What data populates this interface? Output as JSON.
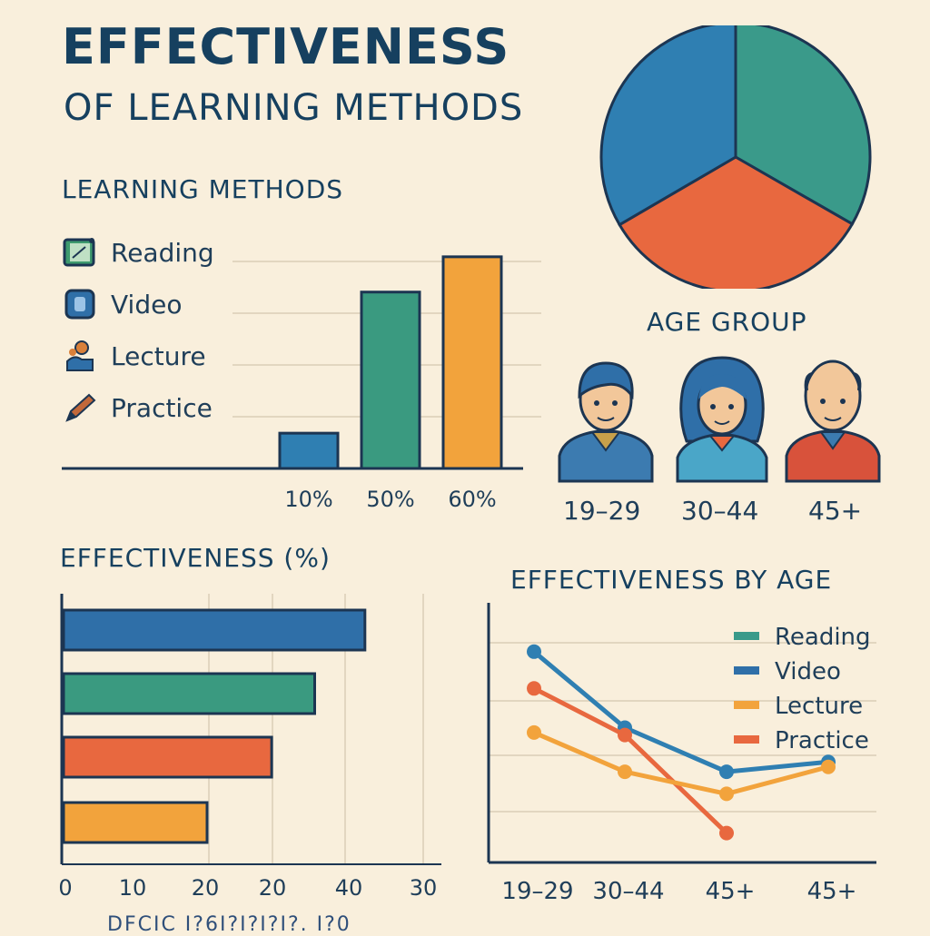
{
  "header": {
    "title_line1": "EFFECTIVENESS",
    "title_line2": "OF LEARNING METHODS"
  },
  "methods_section": {
    "heading": "LEARNING METHODS",
    "items": [
      {
        "label": "Reading",
        "icon": "book-icon",
        "color": "#3e9a6e"
      },
      {
        "label": "Video",
        "icon": "video-icon",
        "color": "#2f6fa8"
      },
      {
        "label": "Lecture",
        "icon": "lecturer-icon",
        "color": "#d9803a"
      },
      {
        "label": "Practice",
        "icon": "pencil-icon",
        "color": "#c2683a"
      }
    ]
  },
  "age_section": {
    "heading": "AGE GROUP",
    "groups": [
      {
        "label": "19–29",
        "icon": "young-man-avatar-icon",
        "shirt": "#3c7bb0"
      },
      {
        "label": "30–44",
        "icon": "woman-avatar-icon",
        "shirt": "#4aa6c8"
      },
      {
        "label": "45+",
        "icon": "older-man-avatar-icon",
        "shirt": "#d8523b"
      }
    ]
  },
  "colors": {
    "reading": "#3a9a8a",
    "video": "#2f6fa8",
    "lecture": "#f2a33c",
    "practice": "#e8683f",
    "dark_outline": "#1c3552",
    "background": "#f9efdc"
  },
  "chart_data": [
    {
      "id": "methods-bar",
      "type": "bar",
      "categories": [
        "10%",
        "50%",
        "60%"
      ],
      "values": [
        10,
        50,
        60
      ],
      "colors": [
        "#2f7fb2",
        "#3a9a80",
        "#f2a33c"
      ],
      "ylim": [
        0,
        70
      ],
      "grid": true
    },
    {
      "id": "age-pie",
      "type": "pie",
      "values": [
        33.3,
        33.3,
        33.4
      ],
      "colors": [
        "#3a9a8a",
        "#e8683f",
        "#2f7fb2"
      ]
    },
    {
      "id": "effectiveness-hbar",
      "type": "bar",
      "orientation": "horizontal",
      "title": "EFFECTIVENESS (%)",
      "values": [
        42,
        35,
        29,
        20
      ],
      "colors": [
        "#2f6fa8",
        "#3a9a80",
        "#e8683f",
        "#f2a33c"
      ],
      "xticks": [
        "0",
        "10",
        "20",
        "20",
        "40",
        "30"
      ],
      "xlim": [
        0,
        50
      ],
      "grid": true
    },
    {
      "id": "effectiveness-by-age",
      "type": "line",
      "title": "EFFECTIVENESS BY AGE",
      "categories": [
        "19–29",
        "30–44",
        "45+",
        "45+"
      ],
      "ylim": [
        0,
        100
      ],
      "grid": true,
      "legend": "top-right",
      "legend_entries": [
        {
          "name": "Reading",
          "color": "#3a9a8a"
        },
        {
          "name": "Video",
          "color": "#2f6fa8"
        },
        {
          "name": "Lecture",
          "color": "#f2a33c"
        },
        {
          "name": "Practice",
          "color": "#e8683f"
        }
      ],
      "series": [
        {
          "name": "Video",
          "color": "#2f7fb2",
          "values": [
            86,
            55,
            37,
            41
          ]
        },
        {
          "name": "Practice",
          "color": "#e8683f",
          "values": [
            71,
            52,
            12,
            null
          ]
        },
        {
          "name": "Lecture",
          "color": "#f2a33c",
          "values": [
            53,
            37,
            28,
            39
          ]
        }
      ]
    }
  ],
  "footer": {
    "text": "DFCIC I?6I?I?I?I?. I?0"
  }
}
